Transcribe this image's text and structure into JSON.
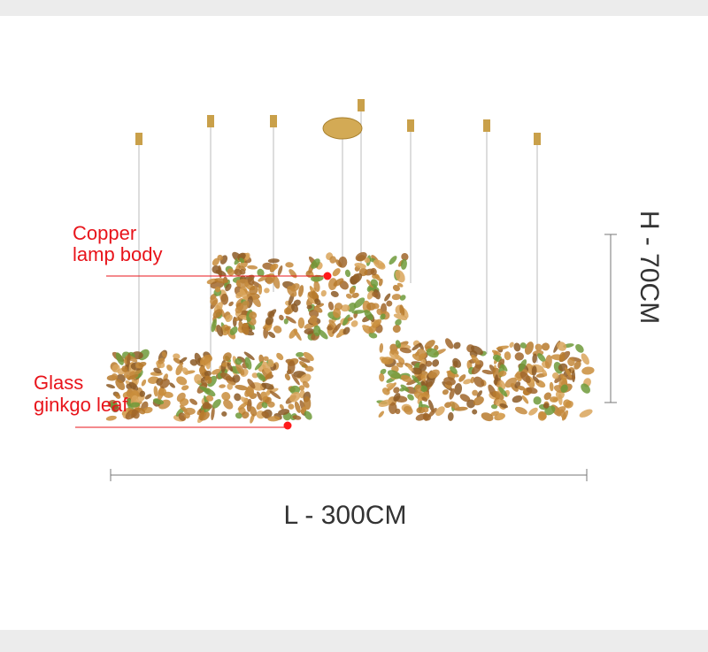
{
  "annotations": [
    {
      "lines": [
        "Copper",
        "lamp body"
      ]
    },
    {
      "lines": [
        "Glass",
        "ginkgo leaf"
      ]
    }
  ],
  "dimensions": {
    "length": "L - 300CM",
    "height": "H - 70CM"
  }
}
